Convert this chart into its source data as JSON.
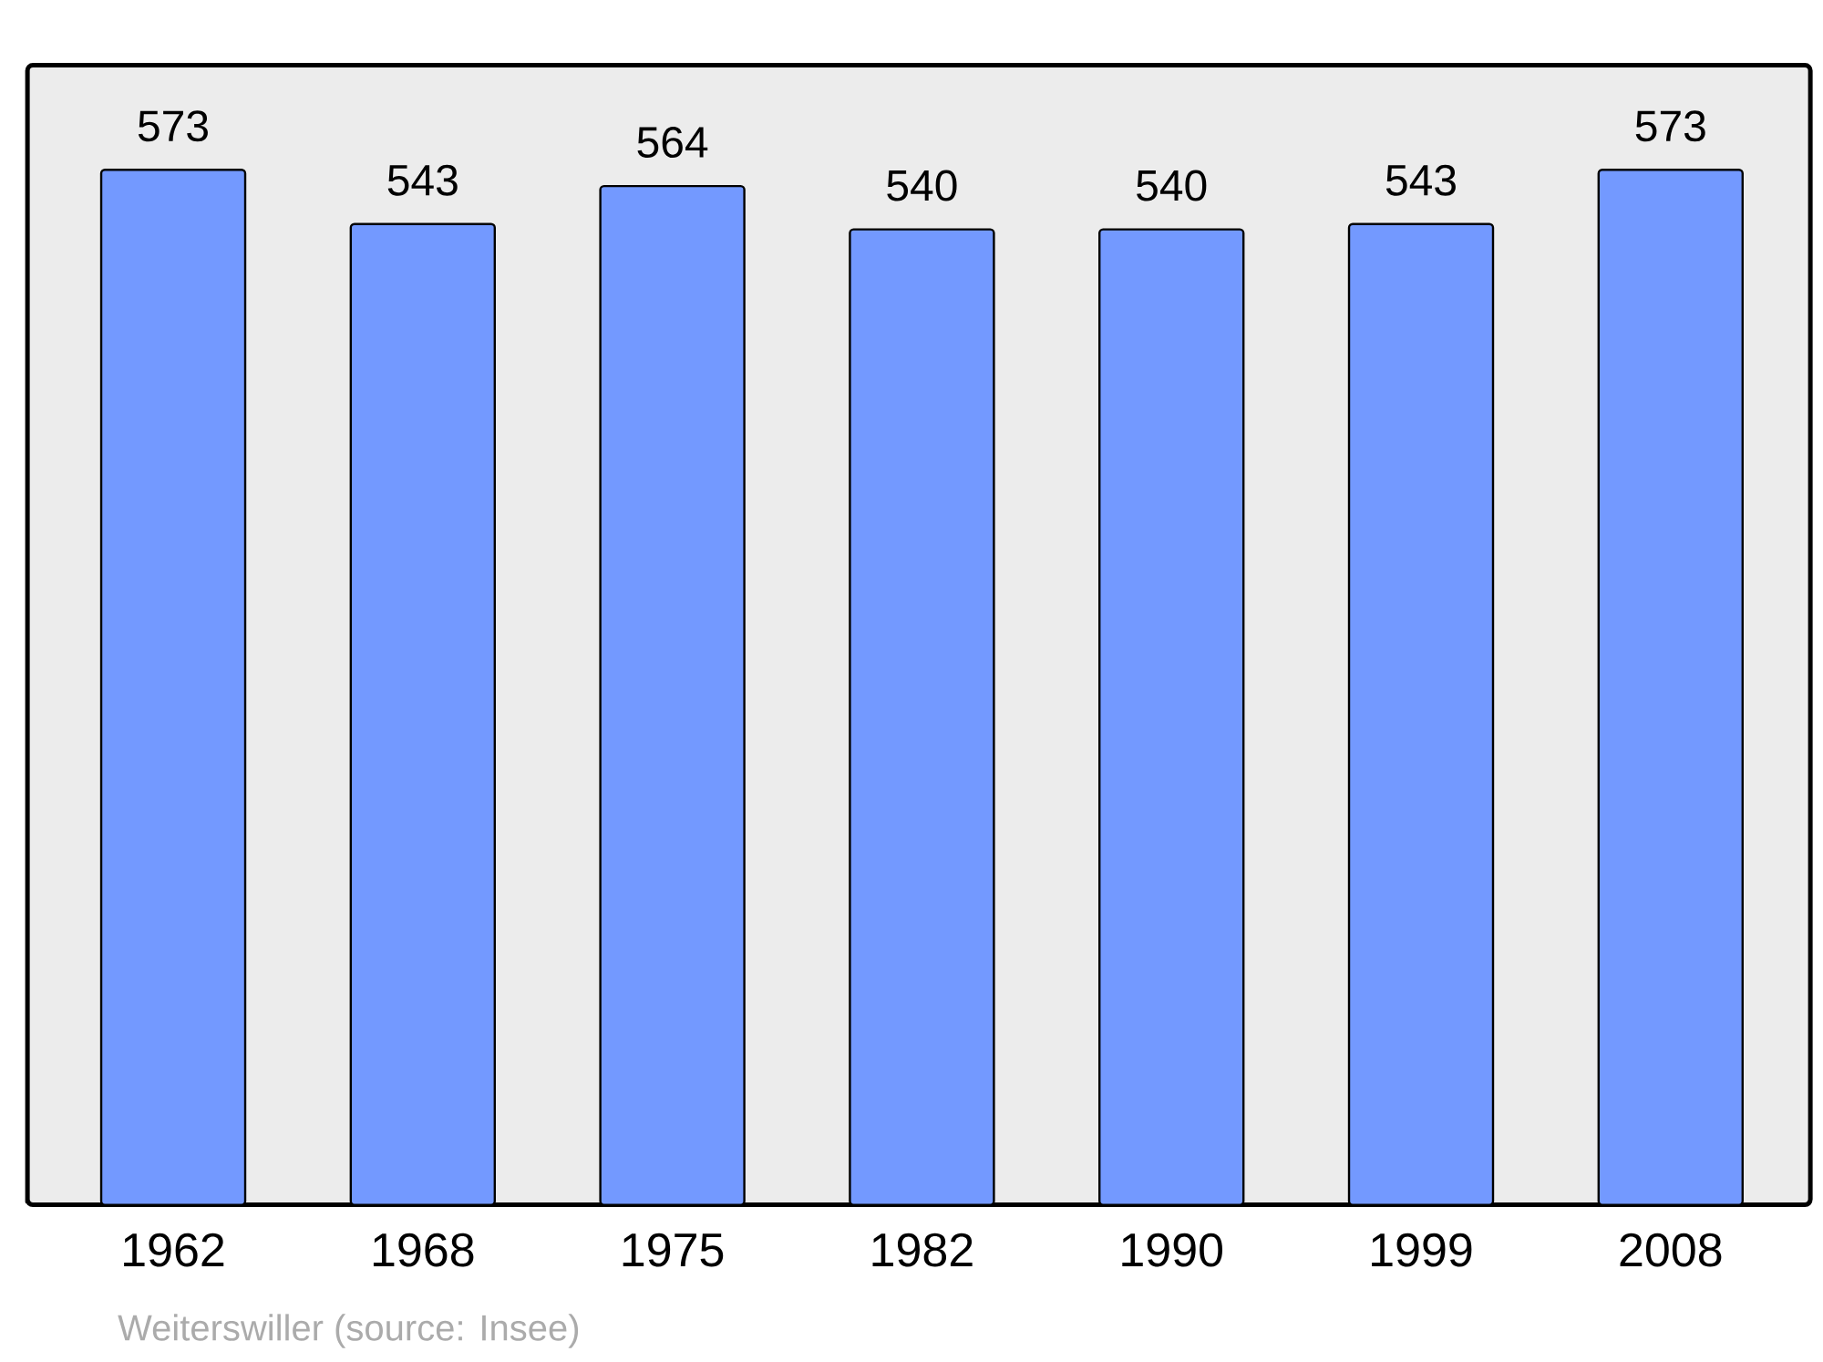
{
  "chart_data": {
    "type": "bar",
    "categories": [
      "1962",
      "1968",
      "1975",
      "1982",
      "1990",
      "1999",
      "2008"
    ],
    "values": [
      573,
      543,
      564,
      540,
      540,
      543,
      573
    ],
    "color": "#7399ff",
    "data_labels": true,
    "annotations": [
      "Weiterswiller    (source: Insee)"
    ]
  }
}
